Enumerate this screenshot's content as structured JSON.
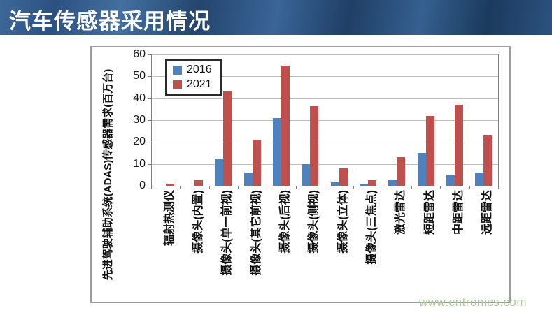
{
  "banner": {
    "title": "汽车传感器采用情况"
  },
  "watermark": {
    "text": "www.cntronics.com",
    "color": "#A8CD96"
  },
  "colors": {
    "banner_base": "#30588A",
    "bar_2016": "#4F81BD",
    "bar_2021": "#C0504D",
    "gridline": "#BFBFBF",
    "axis": "#808080"
  },
  "chart_data": {
    "type": "bar",
    "title": "汽车传感器采用情况",
    "xlabel": "",
    "ylabel": "先进驾驶辅助系统(ADAS)传感器需求(百万台)",
    "ylim": [
      0,
      60
    ],
    "yticks": [
      0,
      10,
      20,
      30,
      40,
      50,
      60
    ],
    "grid": true,
    "legend_position": "top-left-inside",
    "categories": [
      "辐射热测仪",
      "摄像头(内置)",
      "摄像头(单一前视)",
      "摄像头(其它前视)",
      "摄像头(后视)",
      "摄像头(侧视)",
      "摄像头(立体)",
      "摄像头(三焦点)",
      "激光雷达",
      "短距雷达",
      "中距雷达",
      "远距雷达"
    ],
    "series": [
      {
        "name": "2016",
        "color": "#4F81BD",
        "values": [
          0,
          0,
          12.5,
          6,
          31,
          10,
          1.5,
          0.5,
          3,
          15,
          5,
          6
        ]
      },
      {
        "name": "2021",
        "color": "#C0504D",
        "values": [
          1,
          2.5,
          43,
          21,
          55,
          36.5,
          8,
          2.5,
          13,
          32,
          37,
          23
        ]
      }
    ]
  }
}
